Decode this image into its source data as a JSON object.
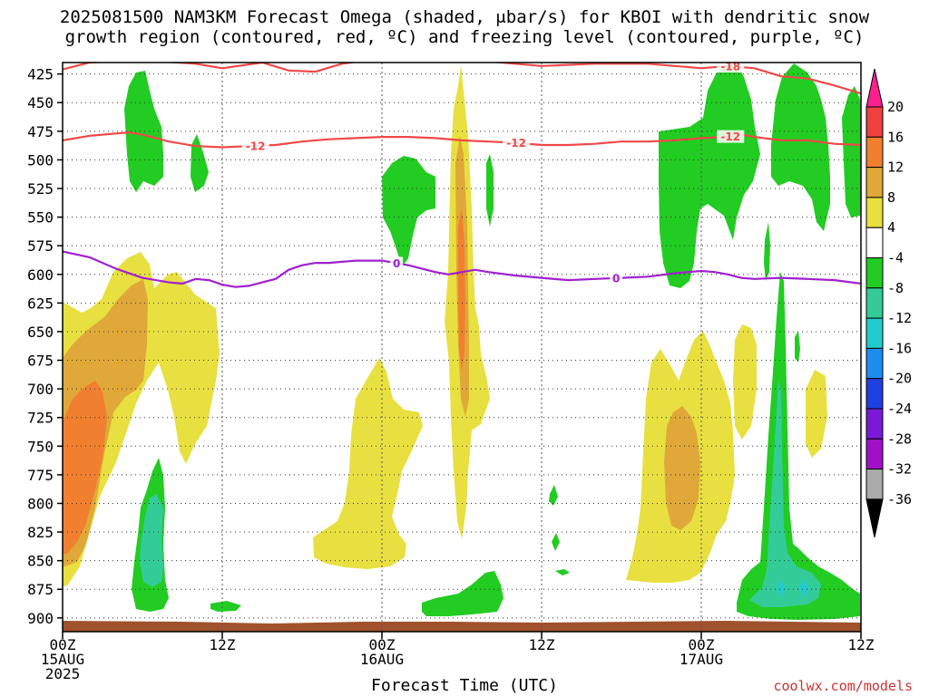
{
  "title_line1": "2025081500 NAM3KM Forecast Omega (shaded, μbar/s) for KBOI with dendritic snow",
  "title_line2": "growth region (contoured, red, ºC) and freezing level (contoured, purple, ºC)",
  "x_axis_label": "Forecast Time (UTC)",
  "credit": "coolwx.com/models",
  "chart_data": {
    "type": "heatmap",
    "title": "2025081500 NAM3KM Forecast Omega (shaded, μbar/s) for KBOI with dendritic snow growth region (contoured, red, ºC) and freezing level (contoured, purple, ºC)",
    "xlabel": "Forecast Time (UTC)",
    "ylabel": "",
    "xlim_hours": [
      0,
      60
    ],
    "ylim_hpa": [
      415,
      912
    ],
    "grid": true,
    "x_ticks": [
      {
        "hour": 0,
        "lines": [
          "00Z",
          "15AUG",
          "2025"
        ]
      },
      {
        "hour": 12,
        "lines": [
          "12Z"
        ]
      },
      {
        "hour": 24,
        "lines": [
          "00Z",
          "16AUG"
        ]
      },
      {
        "hour": 36,
        "lines": [
          "12Z"
        ]
      },
      {
        "hour": 48,
        "lines": [
          "00Z",
          "17AUG"
        ]
      },
      {
        "hour": 60,
        "lines": [
          "12Z"
        ]
      }
    ],
    "y_ticks": [
      425,
      450,
      475,
      500,
      525,
      550,
      575,
      600,
      625,
      650,
      675,
      700,
      725,
      750,
      775,
      800,
      825,
      850,
      875,
      900
    ],
    "colorbar": {
      "labels": [
        "20",
        "16",
        "12",
        "8",
        "4",
        "-4",
        "-8",
        "-12",
        "-16",
        "-20",
        "-24",
        "-28",
        "-32",
        "-36"
      ],
      "colors": [
        "#ff1f8f",
        "#f04040",
        "#f08030",
        "#e0a838",
        "#e8e040",
        "#ffffff",
        "#22cc22",
        "#33cc99",
        "#22cccc",
        "#1e8cf0",
        "#2040e0",
        "#7a1ad8",
        "#a010c8",
        "#aaaaaa",
        "#000000"
      ]
    },
    "contours": [
      {
        "name": "freezing level",
        "color": "#a020d0",
        "level": 0,
        "label": "0",
        "points": [
          [
            0,
            580
          ],
          [
            2,
            585
          ],
          [
            4,
            595
          ],
          [
            6,
            603
          ],
          [
            8,
            607
          ],
          [
            9,
            608
          ],
          [
            10,
            604
          ],
          [
            11,
            605
          ],
          [
            12,
            609
          ],
          [
            13,
            611
          ],
          [
            14,
            610
          ],
          [
            15,
            607
          ],
          [
            16,
            604
          ],
          [
            17,
            596
          ],
          [
            18,
            592
          ],
          [
            19,
            590
          ],
          [
            20,
            590
          ],
          [
            21,
            589
          ],
          [
            22,
            588
          ],
          [
            24,
            588
          ],
          [
            26,
            592
          ],
          [
            28,
            598
          ],
          [
            29,
            600
          ],
          [
            30,
            598
          ],
          [
            31,
            596
          ],
          [
            32,
            598
          ],
          [
            34,
            601
          ],
          [
            36,
            603
          ],
          [
            38,
            605
          ],
          [
            40,
            604
          ],
          [
            42,
            603
          ],
          [
            44,
            602
          ],
          [
            46,
            599
          ],
          [
            48,
            597
          ],
          [
            49,
            598
          ],
          [
            50,
            600
          ],
          [
            51,
            603
          ],
          [
            52,
            604
          ],
          [
            54,
            603
          ],
          [
            56,
            604
          ],
          [
            58,
            605
          ],
          [
            60,
            608
          ]
        ],
        "label_hours": [
          25.1,
          41.6
        ]
      },
      {
        "name": "dendritic -12",
        "color": "#f04848",
        "level": -12,
        "label": "-12",
        "points": [
          [
            0,
            483
          ],
          [
            2,
            479
          ],
          [
            4,
            477
          ],
          [
            5,
            476
          ],
          [
            6,
            478
          ],
          [
            8,
            484
          ],
          [
            10,
            488
          ],
          [
            12,
            489
          ],
          [
            14,
            488
          ],
          [
            16,
            487
          ],
          [
            18,
            484
          ],
          [
            20,
            482
          ],
          [
            22,
            481
          ],
          [
            24,
            480
          ],
          [
            26,
            480
          ],
          [
            28,
            481
          ],
          [
            30,
            483
          ],
          [
            32,
            484
          ],
          [
            34,
            485
          ],
          [
            36,
            487
          ],
          [
            38,
            487
          ],
          [
            40,
            486
          ],
          [
            42,
            484
          ],
          [
            44,
            484
          ],
          [
            46,
            483
          ],
          [
            48,
            481
          ],
          [
            50,
            480
          ],
          [
            51,
            478
          ],
          [
            52,
            480
          ],
          [
            54,
            483
          ],
          [
            56,
            483
          ],
          [
            58,
            486
          ],
          [
            60,
            487
          ]
        ],
        "label_hours": [
          14.5,
          34.1,
          50.2
        ]
      },
      {
        "name": "dendritic -18",
        "color": "#f04848",
        "level": -18,
        "label": "-18",
        "points": [
          [
            0,
            421
          ],
          [
            2,
            415
          ],
          [
            6,
            413
          ],
          [
            10,
            416
          ],
          [
            12,
            420
          ],
          [
            15,
            415
          ],
          [
            17,
            422
          ],
          [
            19,
            423
          ],
          [
            21,
            416
          ],
          [
            23,
            413
          ],
          [
            27,
            411
          ],
          [
            31,
            413
          ],
          [
            34,
            416
          ],
          [
            36,
            418
          ],
          [
            40,
            416
          ],
          [
            44,
            416
          ],
          [
            46,
            418
          ],
          [
            48,
            420
          ],
          [
            50,
            418
          ],
          [
            52,
            420
          ],
          [
            54,
            427
          ],
          [
            56,
            429
          ],
          [
            58,
            435
          ],
          [
            60,
            442
          ]
        ],
        "label_hours": [
          34.3,
          50.2
        ]
      }
    ]
  }
}
